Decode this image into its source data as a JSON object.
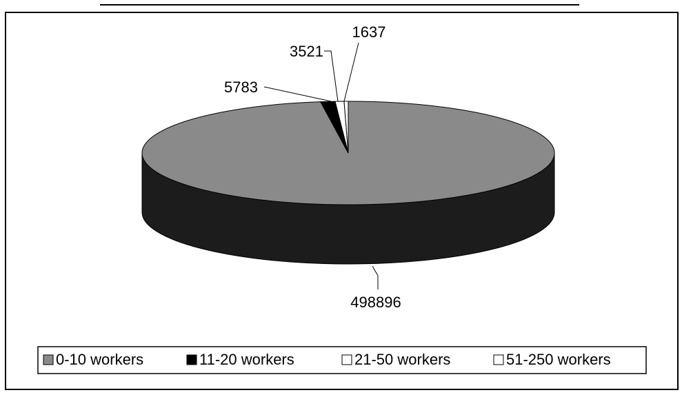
{
  "chart_data": {
    "type": "pie",
    "categories": [
      "0-10 workers",
      "11-20 workers",
      "21-50 workers",
      "51-250 workers"
    ],
    "values": [
      498896,
      5783,
      3521,
      1637
    ],
    "colors": [
      "#8a8a8a",
      "#000000",
      "#ffffff",
      "#ffffff"
    ]
  }
}
